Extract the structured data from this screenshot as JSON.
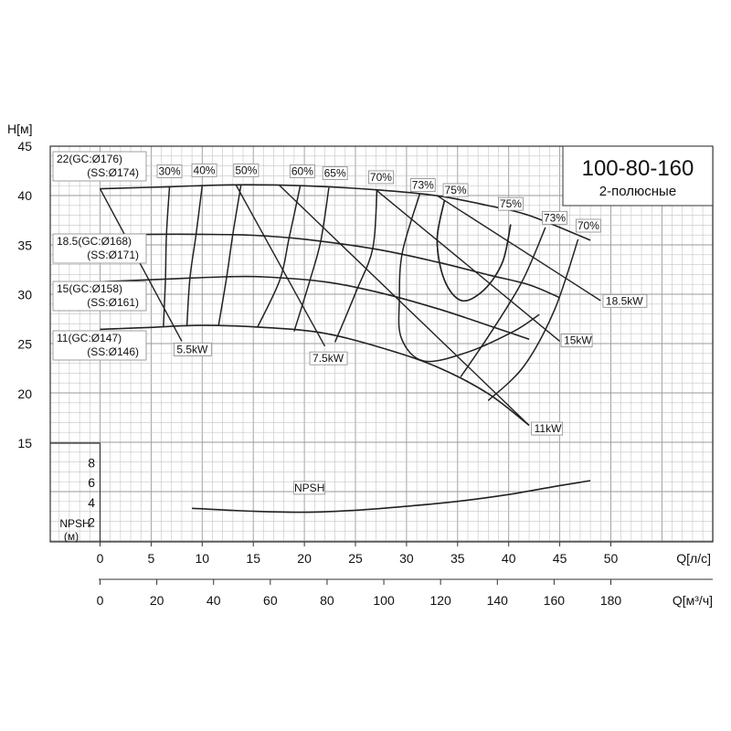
{
  "chart_data": {
    "type": "line",
    "title_model": "100-80-160",
    "title_sub": "2-полюсные",
    "y_axis_label": "H[м]",
    "npsh_axis_label_1": "NPSH",
    "npsh_axis_label_2": "(м)",
    "x_axis_label_ls": "Q[л/с]",
    "x_axis_label_m3h": "Q[м³/ч]",
    "y_ticks": [
      "45",
      "40",
      "35",
      "30",
      "25",
      "20",
      "15"
    ],
    "npsh_ticks": [
      "8",
      "6",
      "4",
      "2"
    ],
    "x_ticks_ls": [
      "0",
      "5",
      "10",
      "15",
      "20",
      "25",
      "30",
      "35",
      "40",
      "45",
      "50"
    ],
    "x_ticks_m3h": [
      "0",
      "20",
      "40",
      "60",
      "80",
      "100",
      "120",
      "140",
      "160",
      "180"
    ],
    "ylim": [
      15,
      45
    ],
    "npsh_ylim": [
      0,
      10
    ],
    "xlim_ls": [
      0,
      55
    ],
    "grid": true,
    "head_curves": [
      {
        "name_line1": "22(GC:Ø176)",
        "name_line2": "(SS:Ø174)",
        "points": [
          [
            0,
            40.7
          ],
          [
            6.8,
            40.9
          ],
          [
            13,
            41.1
          ],
          [
            20,
            41.0
          ],
          [
            27,
            40.6
          ],
          [
            33,
            40
          ],
          [
            38,
            39
          ],
          [
            42,
            38
          ],
          [
            48,
            35.5
          ]
        ]
      },
      {
        "name_line1": "18.5(GC:Ø168)",
        "name_line2": "(SS:Ø171)",
        "points": [
          [
            0,
            36.0
          ],
          [
            5,
            36.1
          ],
          [
            10,
            36.1
          ],
          [
            15,
            36.0
          ],
          [
            20,
            35.6
          ],
          [
            27,
            34.6
          ],
          [
            33,
            33.3
          ],
          [
            38,
            32
          ],
          [
            42,
            31
          ],
          [
            45,
            29.7
          ]
        ]
      },
      {
        "name_line1": "15(GC:Ø158)",
        "name_line2": "(SS:Ø161)",
        "points": [
          [
            0,
            31.3
          ],
          [
            7,
            31.6
          ],
          [
            12,
            31.8
          ],
          [
            16,
            31.8
          ],
          [
            22,
            31.3
          ],
          [
            27,
            30.3
          ],
          [
            33,
            28.6
          ],
          [
            38,
            26.9
          ],
          [
            42,
            25.5
          ]
        ]
      },
      {
        "name_line1": "11(GC:Ø147)",
        "name_line2": "(SS:Ø146)",
        "points": [
          [
            0,
            26.5
          ],
          [
            5,
            26.7
          ],
          [
            10,
            26.9
          ],
          [
            16,
            26.7
          ],
          [
            22,
            26.1
          ],
          [
            28,
            24.5
          ],
          [
            33,
            22.7
          ],
          [
            38,
            20
          ],
          [
            42,
            16.8
          ]
        ]
      }
    ],
    "efficiency_curves": [
      {
        "label": "30%",
        "points": [
          [
            6.8,
            40.9
          ],
          [
            6.5,
            36.1
          ],
          [
            6.4,
            31.6
          ],
          [
            6.2,
            26.7
          ]
        ]
      },
      {
        "label": "40%",
        "points": [
          [
            10,
            41.0
          ],
          [
            9.4,
            36.1
          ],
          [
            8.8,
            31.7
          ],
          [
            8.5,
            26.8
          ]
        ]
      },
      {
        "label": "50%",
        "points": [
          [
            13.8,
            41.1
          ],
          [
            13,
            36.1
          ],
          [
            12.4,
            31.8
          ],
          [
            11.6,
            26.9
          ]
        ]
      },
      {
        "label": "60%",
        "points": [
          [
            19.6,
            41.0
          ],
          [
            18.5,
            35.7
          ],
          [
            17.6,
            31.5
          ],
          [
            15.4,
            26.7
          ]
        ]
      },
      {
        "label": "65%",
        "points": [
          [
            22.4,
            40.8
          ],
          [
            21.6,
            35.4
          ],
          [
            20.5,
            31.3
          ],
          [
            19,
            26.3
          ]
        ]
      },
      {
        "label": "70%",
        "points": [
          [
            27.1,
            40.5
          ],
          [
            26.7,
            34.7
          ],
          [
            25.1,
            30.4
          ],
          [
            23,
            25.2
          ]
        ]
      },
      {
        "label": "73%",
        "points": [
          [
            31.3,
            40.2
          ],
          [
            29.6,
            34.3
          ],
          [
            29.3,
            29.6
          ],
          [
            29.5,
            25.6
          ],
          [
            31.7,
            23.3
          ],
          [
            36,
            24.2
          ],
          [
            40.5,
            26.3
          ],
          [
            43,
            28
          ]
        ]
      },
      {
        "label": "75%",
        "points": [
          [
            33.7,
            39.5
          ],
          [
            33,
            35.5
          ],
          [
            33.7,
            31.5
          ],
          [
            35.4,
            29.4
          ],
          [
            37.6,
            30.5
          ],
          [
            39.4,
            33.3
          ],
          [
            40.2,
            37.1
          ]
        ]
      },
      {
        "label": "75%",
        "points": [
          [
            33.7,
            39.5
          ],
          [
            33,
            35.5
          ],
          [
            33.7,
            31.5
          ],
          [
            35.4,
            29.4
          ],
          [
            37.6,
            30.5
          ],
          [
            39.4,
            33.3
          ],
          [
            40.2,
            37.1
          ]
        ]
      },
      {
        "label": "73%",
        "points": [
          [
            43.6,
            36.8
          ],
          [
            41.3,
            31.3
          ],
          [
            38.2,
            26.1
          ],
          [
            35.3,
            21.7
          ]
        ]
      },
      {
        "label": "70%",
        "points": [
          [
            46.8,
            35.6
          ],
          [
            44.5,
            28.5
          ],
          [
            41.5,
            22.8
          ],
          [
            38,
            19.3
          ]
        ]
      }
    ],
    "eff_labels": [
      {
        "text": "30%",
        "q": 6.8,
        "h": 42.1
      },
      {
        "text": "40%",
        "q": 10.2,
        "h": 42.2
      },
      {
        "text": "50%",
        "q": 14.3,
        "h": 42.2
      },
      {
        "text": "60%",
        "q": 19.8,
        "h": 42.1
      },
      {
        "text": "65%",
        "q": 23.0,
        "h": 41.9
      },
      {
        "text": "70%",
        "q": 27.5,
        "h": 41.5
      },
      {
        "text": "73%",
        "q": 31.6,
        "h": 40.7
      },
      {
        "text": "75%",
        "q": 34.8,
        "h": 40.2
      },
      {
        "text": "75%",
        "q": 40.2,
        "h": 38.8
      },
      {
        "text": "73%",
        "q": 44.5,
        "h": 37.4
      },
      {
        "text": "70%",
        "q": 47.8,
        "h": 36.6
      }
    ],
    "power_lines": [
      {
        "label": "5.5kW",
        "points": [
          [
            0,
            40.7
          ],
          [
            8,
            25.3
          ]
        ],
        "label_at": [
          7.5,
          24.1
        ]
      },
      {
        "label": "7.5kW",
        "points": [
          [
            13.3,
            41.1
          ],
          [
            22,
            24.8
          ]
        ],
        "label_at": [
          20.8,
          23.2
        ]
      },
      {
        "label": "11kW",
        "points": [
          [
            17.5,
            41.1
          ],
          [
            42,
            16.8
          ]
        ],
        "label_at": [
          42.5,
          16.1
        ]
      },
      {
        "label": "15kW",
        "points": [
          [
            27,
            40.6
          ],
          [
            45,
            25.3
          ]
        ],
        "label_at": [
          45.4,
          25.0
        ]
      },
      {
        "label": "18.5kW",
        "points": [
          [
            33,
            40
          ],
          [
            49,
            29.4
          ]
        ],
        "label_at": [
          49.5,
          29.0
        ]
      }
    ],
    "npsh_curve": {
      "label": "NPSH",
      "points": [
        [
          9,
          3.4
        ],
        [
          15,
          3.1
        ],
        [
          20,
          3.0
        ],
        [
          25,
          3.2
        ],
        [
          30,
          3.6
        ],
        [
          35,
          4.1
        ],
        [
          40,
          4.8
        ],
        [
          45,
          5.7
        ],
        [
          48,
          6.2
        ]
      ]
    },
    "npsh_label_at": [
      20.5,
      5.1
    ]
  }
}
